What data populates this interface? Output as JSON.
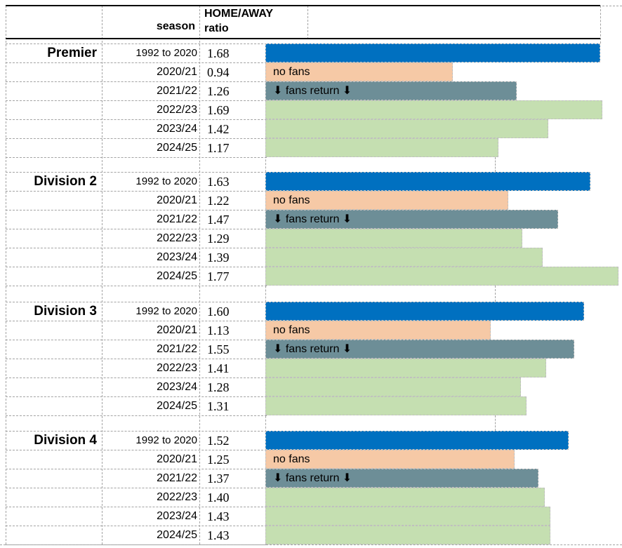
{
  "header": {
    "season_label": "season",
    "ratio_label_line1": "HOME/AWAY",
    "ratio_label_line2": "ratio"
  },
  "chart_data": {
    "type": "bar",
    "orientation": "horizontal",
    "value_label": "HOME/AWAY ratio",
    "xlim": [
      0,
      1.8
    ],
    "gridlines": "dashed",
    "colors": {
      "pre_covid": "#0070C0",
      "no_fans": "#F6C9A6",
      "fans_return": "#6D8E97",
      "recent": "#C5DFB1"
    },
    "groups": [
      {
        "label": "Premier",
        "rows": [
          {
            "season": "1992 to 2020",
            "ratio": "1.68",
            "value": 1.68,
            "kind": "pre_covid"
          },
          {
            "season": "2020/21",
            "ratio": "0.94",
            "value": 0.94,
            "kind": "no_fans",
            "annotation": "no fans"
          },
          {
            "season": "2021/22",
            "ratio": "1.26",
            "value": 1.26,
            "kind": "fans_return",
            "annotation": "⬇ fans return ⬇"
          },
          {
            "season": "2022/23",
            "ratio": "1.69",
            "value": 1.69,
            "kind": "recent"
          },
          {
            "season": "2023/24",
            "ratio": "1.42",
            "value": 1.42,
            "kind": "recent"
          },
          {
            "season": "2024/25",
            "ratio": "1.17",
            "value": 1.17,
            "kind": "recent"
          }
        ]
      },
      {
        "label": "Division 2",
        "rows": [
          {
            "season": "1992 to 2020",
            "ratio": "1.63",
            "value": 1.63,
            "kind": "pre_covid"
          },
          {
            "season": "2020/21",
            "ratio": "1.22",
            "value": 1.22,
            "kind": "no_fans",
            "annotation": "no fans"
          },
          {
            "season": "2021/22",
            "ratio": "1.47",
            "value": 1.47,
            "kind": "fans_return",
            "annotation": "⬇ fans return ⬇"
          },
          {
            "season": "2022/23",
            "ratio": "1.29",
            "value": 1.29,
            "kind": "recent"
          },
          {
            "season": "2023/24",
            "ratio": "1.39",
            "value": 1.39,
            "kind": "recent"
          },
          {
            "season": "2024/25",
            "ratio": "1.77",
            "value": 1.77,
            "kind": "recent"
          }
        ]
      },
      {
        "label": "Division 3",
        "rows": [
          {
            "season": "1992 to 2020",
            "ratio": "1.60",
            "value": 1.6,
            "kind": "pre_covid"
          },
          {
            "season": "2020/21",
            "ratio": "1.13",
            "value": 1.13,
            "kind": "no_fans",
            "annotation": "no fans"
          },
          {
            "season": "2021/22",
            "ratio": "1.55",
            "value": 1.55,
            "kind": "fans_return",
            "annotation": "⬇ fans return ⬇"
          },
          {
            "season": "2022/23",
            "ratio": "1.41",
            "value": 1.41,
            "kind": "recent"
          },
          {
            "season": "2023/24",
            "ratio": "1.28",
            "value": 1.28,
            "kind": "recent"
          },
          {
            "season": "2024/25",
            "ratio": "1.31",
            "value": 1.31,
            "kind": "recent"
          }
        ]
      },
      {
        "label": "Division 4",
        "rows": [
          {
            "season": "1992 to 2020",
            "ratio": "1.52",
            "value": 1.52,
            "kind": "pre_covid"
          },
          {
            "season": "2020/21",
            "ratio": "1.25",
            "value": 1.25,
            "kind": "no_fans",
            "annotation": "no fans"
          },
          {
            "season": "2021/22",
            "ratio": "1.37",
            "value": 1.37,
            "kind": "fans_return",
            "annotation": "⬇ fans return ⬇"
          },
          {
            "season": "2022/23",
            "ratio": "1.40",
            "value": 1.4,
            "kind": "recent"
          },
          {
            "season": "2023/24",
            "ratio": "1.43",
            "value": 1.43,
            "kind": "recent"
          },
          {
            "season": "2024/25",
            "ratio": "1.43",
            "value": 1.43,
            "kind": "recent"
          }
        ]
      }
    ]
  }
}
